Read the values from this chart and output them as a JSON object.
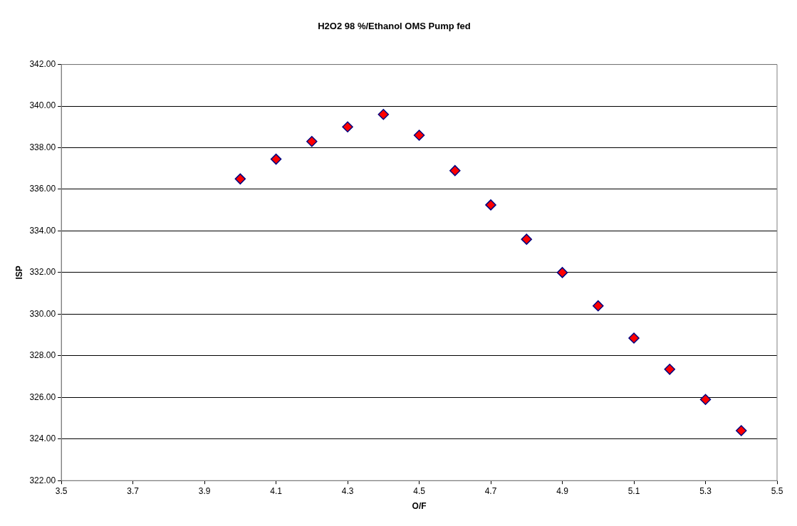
{
  "chart_data": {
    "type": "scatter",
    "title": "H2O2 98 %/Ethanol OMS Pump fed",
    "xlabel": "O/F",
    "ylabel": "ISP",
    "x": [
      4.0,
      4.1,
      4.2,
      4.3,
      4.4,
      4.5,
      4.6,
      4.7,
      4.8,
      4.9,
      5.0,
      5.1,
      5.2,
      5.3,
      5.4
    ],
    "series": [
      {
        "color": "#ff0000",
        "values": [
          336.5,
          337.45,
          338.3,
          339.0,
          339.6,
          338.6,
          336.9,
          335.25,
          333.6,
          332.0,
          330.4,
          328.85,
          327.35,
          325.9,
          324.4
        ]
      }
    ],
    "xlim": [
      3.5,
      5.5
    ],
    "xticks": [
      3.5,
      3.7,
      3.9,
      4.1,
      4.3,
      4.5,
      4.7,
      4.9,
      5.1,
      5.3,
      5.5
    ],
    "ylim": [
      322,
      342
    ],
    "yticks": [
      {
        "value": 322,
        "label": "322.00"
      },
      {
        "value": 324,
        "label": "324.00"
      },
      {
        "value": 326,
        "label": "326.00"
      },
      {
        "value": 328,
        "label": "328.00"
      },
      {
        "value": 330,
        "label": "330.00"
      },
      {
        "value": 332,
        "label": "332.00"
      },
      {
        "value": 334,
        "label": "334.00"
      },
      {
        "value": 336,
        "label": "336.00"
      },
      {
        "value": 338,
        "label": "338.00"
      },
      {
        "value": 340,
        "label": "340.00"
      },
      {
        "value": 342,
        "label": "342.00"
      }
    ],
    "grid": "y",
    "legend": false,
    "marker": "diamond"
  }
}
